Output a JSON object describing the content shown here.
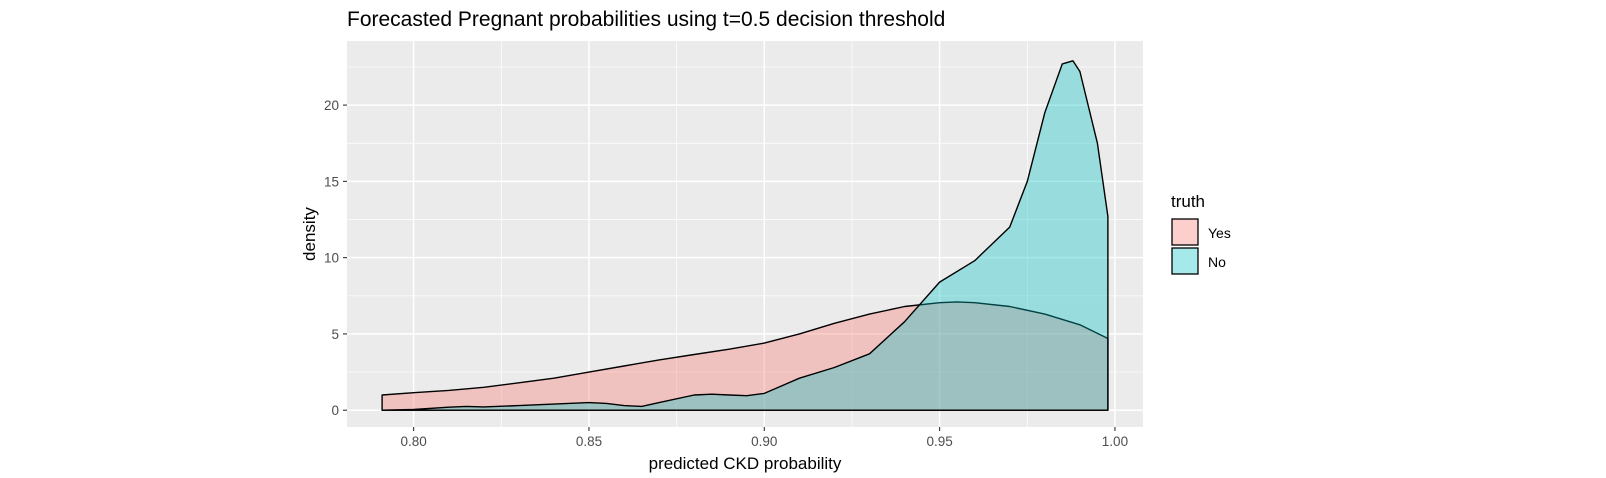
{
  "chart_data": {
    "type": "area",
    "title": "Forecasted Pregnant probabilities using t=0.5 decision threshold",
    "xlabel": "predicted CKD probability",
    "ylabel": "density",
    "xlim": [
      0.781,
      1.008
    ],
    "ylim": [
      -1.1,
      24.2
    ],
    "x_ticks": [
      0.8,
      0.85,
      0.9,
      0.95,
      1.0
    ],
    "x_tick_labels": [
      "0.80",
      "0.85",
      "0.90",
      "0.95",
      "1.00"
    ],
    "y_ticks": [
      0,
      5,
      10,
      15,
      20
    ],
    "y_tick_labels": [
      "0",
      "5",
      "10",
      "15",
      "20"
    ],
    "grid": true,
    "background_color": "#ebebeb",
    "legend": {
      "title": "truth",
      "position": "right",
      "entries": [
        {
          "label": "Yes",
          "color": "#f8766d"
        },
        {
          "label": "No",
          "color": "#00bfc4"
        }
      ]
    },
    "fill_alpha": 0.35,
    "series": [
      {
        "name": "Yes",
        "color": "#f8766d",
        "x": [
          0.791,
          0.8,
          0.81,
          0.82,
          0.83,
          0.84,
          0.85,
          0.86,
          0.87,
          0.88,
          0.89,
          0.9,
          0.91,
          0.92,
          0.93,
          0.94,
          0.95,
          0.955,
          0.96,
          0.97,
          0.98,
          0.99,
          0.998
        ],
        "y": [
          1.0,
          1.15,
          1.3,
          1.5,
          1.8,
          2.1,
          2.5,
          2.9,
          3.3,
          3.65,
          4.0,
          4.4,
          5.0,
          5.7,
          6.3,
          6.8,
          7.05,
          7.1,
          7.05,
          6.8,
          6.3,
          5.6,
          4.7
        ]
      },
      {
        "name": "No",
        "color": "#00bfc4",
        "x": [
          0.791,
          0.8,
          0.81,
          0.815,
          0.82,
          0.83,
          0.84,
          0.85,
          0.855,
          0.86,
          0.865,
          0.87,
          0.88,
          0.885,
          0.89,
          0.895,
          0.9,
          0.91,
          0.92,
          0.93,
          0.94,
          0.95,
          0.96,
          0.97,
          0.975,
          0.98,
          0.985,
          0.988,
          0.99,
          0.995,
          0.998
        ],
        "y": [
          0.0,
          0.05,
          0.2,
          0.25,
          0.22,
          0.3,
          0.4,
          0.5,
          0.45,
          0.3,
          0.25,
          0.5,
          1.0,
          1.05,
          1.0,
          0.95,
          1.1,
          2.1,
          2.8,
          3.7,
          5.8,
          8.4,
          9.8,
          12.0,
          15.0,
          19.5,
          22.7,
          22.9,
          22.2,
          17.5,
          12.7
        ]
      }
    ]
  }
}
